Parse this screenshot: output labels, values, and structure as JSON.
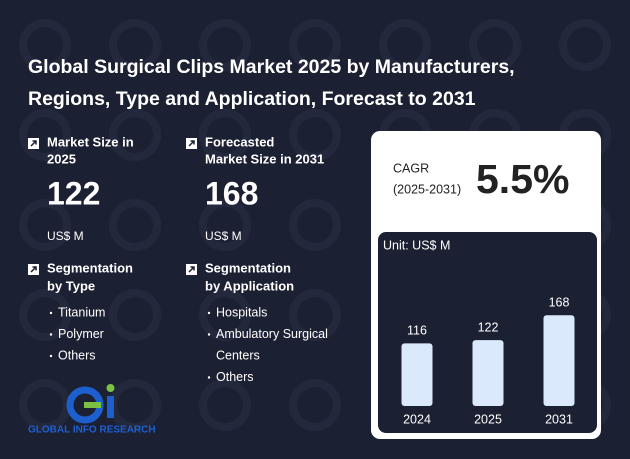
{
  "header": {
    "title_lines": [
      "Global Surgical Clips Market 2025 by Manufacturers,",
      "Regions, Type and Application, Forecast to 2031"
    ]
  },
  "kpis": [
    {
      "label_lines": [
        "Market Size in",
        "2025"
      ],
      "value": 122,
      "unit": "US$ M"
    },
    {
      "label_lines": [
        "Forecasted",
        "Market Size in 2031"
      ],
      "value": 168,
      "unit": "US$ M"
    }
  ],
  "segments": [
    {
      "title_lines": [
        "Segmentation",
        "by Type"
      ],
      "items": [
        [
          "Titanium"
        ],
        [
          "Polymer"
        ],
        [
          "Others"
        ]
      ]
    },
    {
      "title_lines": [
        "Segmentation",
        "by Application"
      ],
      "items": [
        [
          "Hospitals"
        ],
        [
          "Ambulatory Surgical",
          "Centers"
        ],
        [
          "Others"
        ]
      ]
    }
  ],
  "cagr": {
    "label": "CAGR",
    "period": "(2025-2031)",
    "value": "5.5%"
  },
  "logo": {
    "text": "GLOBAL INFO RESEARCH"
  },
  "chart_data": {
    "type": "bar",
    "subtitle": "Unit: US$ M",
    "categories": [
      "2024",
      "2025",
      "2031"
    ],
    "values": [
      116,
      122,
      168
    ],
    "color": "#dbe9fd",
    "ylim": [
      0,
      200
    ]
  }
}
